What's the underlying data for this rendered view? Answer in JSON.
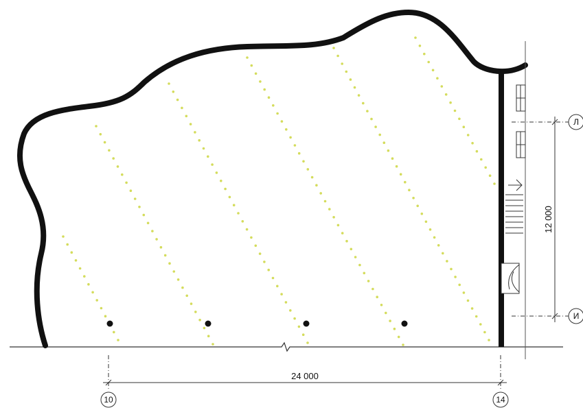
{
  "drawing": {
    "dimensions": {
      "horizontal": "24 000",
      "vertical": "12 000"
    },
    "axes": {
      "bottom_left": "10",
      "bottom_right": "14",
      "right_top": "Л",
      "right_bottom": "И"
    },
    "colors": {
      "outline": "#111111",
      "dotted_lines": "#d4dc5c",
      "columns": "#111111",
      "thin_lines": "#444444"
    }
  }
}
